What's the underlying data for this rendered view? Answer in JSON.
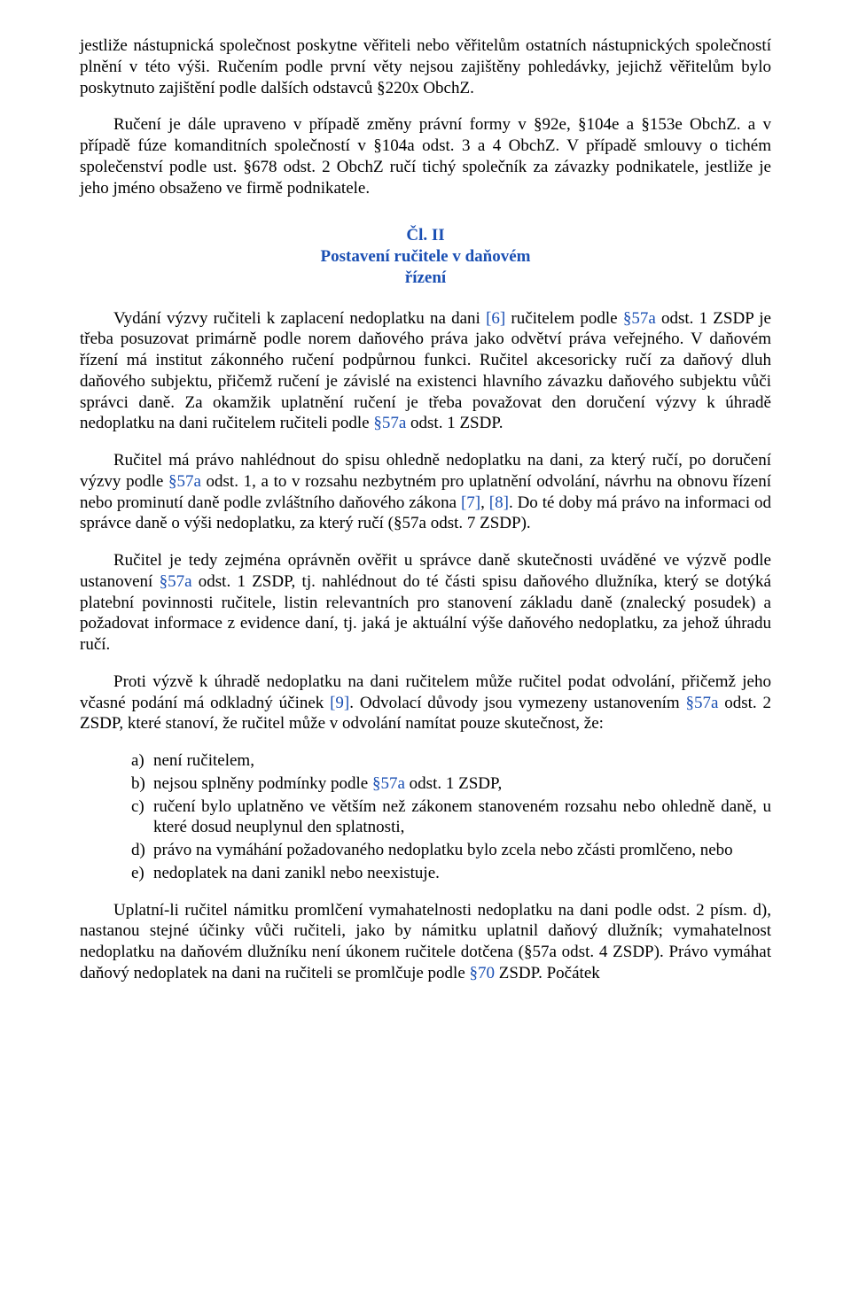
{
  "colors": {
    "text": "#000000",
    "link": "#1a4fb3",
    "background": "#ffffff"
  },
  "typography": {
    "font_family": "Times New Roman",
    "body_fontsize_pt": 14,
    "heading_fontsize_pt": 14,
    "heading_weight": "bold",
    "line_height": 1.25
  },
  "p1": {
    "seg1": "jestliže nástupnická společnost poskytne věřiteli nebo věřitelům ostatních nástupnických společností plnění v této výši. Ručením podle první věty nejsou zajištěny pohledávky, jejichž věřitelům bylo poskytnuto zajištění podle dalších odstavců §220x ObchZ."
  },
  "p2": {
    "seg1": "Ručení je dále upraveno v případě změny právní formy v §92e, §104e a §153e ObchZ. a v případě fúze komanditních společností v §104a odst.  3 a 4 ObchZ. V případě smlouvy o tichém společenství podle ust.  §678 odst.  2 ObchZ ručí tichý společník za závazky podnikatele, jestliže je jeho jméno obsaženo ve firmě podnikatele."
  },
  "heading": {
    "line1": "Čl. II",
    "line2": "Postavení ručitele v daňovém",
    "line3": "řízení"
  },
  "p3": {
    "seg1": "Vydání výzvy ručiteli k zaplacení nedoplatku na dani ",
    "link1": "[6]",
    "seg2": " ručitelem podle ",
    "link2": "§57a",
    "seg3": " odst.  1 ZSDP je třeba posuzovat primárně podle norem daňového práva jako odvětví práva veřejného. V daňovém řízení má institut zákonného ručení podpůrnou funkci. Ručitel akcesoricky ručí za daňový dluh daňového subjektu, přičemž ručení je závislé na existenci hlavního závazku daňového subjektu vůči správci daně. Za okamžik uplatnění ručení je třeba považovat den doručení výzvy k úhradě nedoplatku na dani ručitelem ručiteli podle ",
    "link3": "§57a",
    "seg4": " odst.  1 ZSDP."
  },
  "p4": {
    "seg1": "Ručitel má právo nahlédnout do spisu ohledně nedoplatku na dani, za který ručí, po doručení výzvy podle ",
    "link1": "§57a",
    "seg2": " odst.  1, a to v rozsahu nezbytném pro uplatnění odvolání, návrhu na obnovu řízení nebo prominutí daně podle zvláštního daňového zákona ",
    "link2": "[7]",
    "seg3": ", ",
    "link3": "[8]",
    "seg4": ". Do té doby má právo na informaci od správce daně o výši nedoplatku, za který ručí (§57a odst.  7 ZSDP)."
  },
  "p5": {
    "seg1": "Ručitel je tedy zejména oprávněn ověřit u správce daně skutečnosti uváděné ve výzvě podle ustanovení ",
    "link1": "§57a",
    "seg2": " odst.  1 ZSDP, tj. nahlédnout do té části spisu daňového dlužníka, který se dotýká platební povinnosti ručitele, listin relevantních pro stanovení základu daně (znalecký posudek) a požadovat informace z evidence daní, tj. jaká je aktuální výše daňového nedoplatku, za jehož úhradu ručí."
  },
  "p6": {
    "seg1": "Proti výzvě k úhradě nedoplatku na dani ručitelem může ručitel podat odvolání, přičemž jeho včasné podání má odkladný účinek ",
    "link1": "[9]",
    "seg2": ". Odvolací důvody jsou vymezeny ustanovením ",
    "link2": "§57a",
    "seg3": " odst.  2 ZSDP, které stanoví, že ručitel může v odvolání namítat pouze skutečnost, že:"
  },
  "list": {
    "a": {
      "marker": "a)",
      "text": "není ručitelem,"
    },
    "b": {
      "marker": "b)",
      "seg1": "nejsou splněny podmínky podle ",
      "link1": "§57a",
      "seg2": " odst.  1 ZSDP,"
    },
    "c": {
      "marker": "c)",
      "text": "ručení bylo uplatněno ve větším než zákonem stanoveném rozsahu nebo ohledně daně, u které dosud neuplynul den splatnosti,"
    },
    "d": {
      "marker": "d)",
      "text": "právo na vymáhání požadovaného nedoplatku bylo zcela nebo zčásti promlčeno, nebo"
    },
    "e": {
      "marker": "e)",
      "text": "nedoplatek na dani zanikl nebo neexistuje."
    }
  },
  "p7": {
    "seg1": "Uplatní-li ručitel námitku promlčení vymahatelnosti nedoplatku na dani podle odst.  2 písm.  d), nastanou stejné účinky vůči ručiteli, jako by námitku uplatnil daňový dlužník; vymahatelnost nedoplatku na daňovém dlužníku není úkonem ručitele dotčena (§57a odst.  4 ZSDP). Právo vymáhat daňový nedoplatek na dani na ručiteli se promlčuje podle ",
    "link1": "§70",
    "seg2": " ZSDP. Počátek"
  }
}
